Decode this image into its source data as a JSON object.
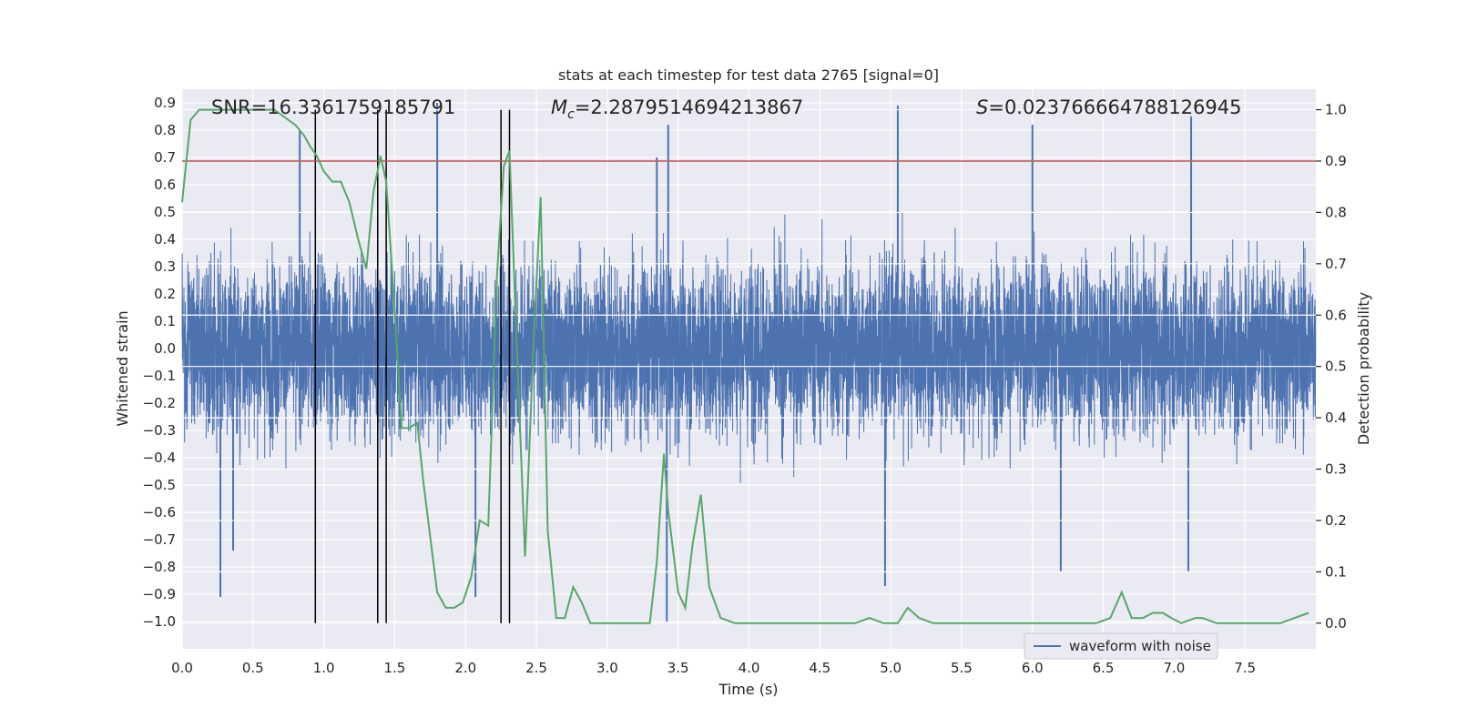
{
  "chart_data": {
    "type": "line",
    "title": "stats at each timestep for test data 2765 [signal=0]",
    "xlabel": "Time (s)",
    "ylabel_left": "Whitened strain",
    "ylabel_right": "Detection probability",
    "xlim": [
      0,
      8
    ],
    "ylim_left": [
      -1.1,
      0.95
    ],
    "ylim_right": [
      -0.05,
      1.04
    ],
    "x_ticks": [
      0.0,
      0.5,
      1.0,
      1.5,
      2.0,
      2.5,
      3.0,
      3.5,
      4.0,
      4.5,
      5.0,
      5.5,
      6.0,
      6.5,
      7.0,
      7.5
    ],
    "x_tick_labels": [
      "0.0",
      "0.5",
      "1.0",
      "1.5",
      "2.0",
      "2.5",
      "3.0",
      "3.5",
      "4.0",
      "4.5",
      "5.0",
      "5.5",
      "6.0",
      "6.5",
      "7.0",
      "7.5"
    ],
    "y_left_ticks": [
      0.9,
      0.8,
      0.7,
      0.6,
      0.5,
      0.4,
      0.3,
      0.2,
      0.1,
      0.0,
      -0.1,
      -0.2,
      -0.3,
      -0.4,
      -0.5,
      -0.6,
      -0.7,
      -0.8,
      -0.9,
      -1.0
    ],
    "y_left_tick_labels": [
      "0.9",
      "0.8",
      "0.7",
      "0.6",
      "0.5",
      "0.4",
      "0.3",
      "0.2",
      "0.1",
      "0.0",
      "−0.1",
      "−0.2",
      "−0.3",
      "−0.4",
      "−0.5",
      "−0.6",
      "−0.7",
      "−0.8",
      "−0.9",
      "−1.0"
    ],
    "y_right_ticks": [
      1.0,
      0.9,
      0.8,
      0.7,
      0.6,
      0.5,
      0.4,
      0.3,
      0.2,
      0.1,
      0.0
    ],
    "y_right_tick_labels": [
      "1.0",
      "0.9",
      "0.8",
      "0.7",
      "0.6",
      "0.5",
      "0.4",
      "0.3",
      "0.2",
      "0.1",
      "0.0"
    ],
    "annotations": {
      "snr": "SNR=16.3361759185791",
      "mc_symbol": "M",
      "mc_sub": "c",
      "mc_value": "=2.2879514694213867",
      "s_symbol": "S",
      "s_value": "=0.023766664788126945"
    },
    "legend": {
      "entries": [
        "waveform with noise"
      ],
      "location": "lower-right"
    },
    "threshold": {
      "value": 0.9,
      "axis": "right",
      "color": "#c44e52"
    },
    "vertical_lines": [
      0.94,
      1.38,
      1.44,
      2.25,
      2.31
    ],
    "waveform": {
      "name": "waveform with noise",
      "color": "#4c72b0",
      "samples": 8192,
      "noise_sigma": 0.22,
      "envelope_max": 0.9,
      "envelope_min": -1.0,
      "spikes": [
        {
          "t": 0.27,
          "v": -0.91
        },
        {
          "t": 0.36,
          "v": -0.74
        },
        {
          "t": 0.83,
          "v": 0.8
        },
        {
          "t": 1.8,
          "v": 0.9
        },
        {
          "t": 2.07,
          "v": -0.91
        },
        {
          "t": 3.42,
          "v": -1.0
        },
        {
          "t": 3.43,
          "v": 0.82
        },
        {
          "t": 5.05,
          "v": 0.89
        },
        {
          "t": 4.96,
          "v": -0.87
        },
        {
          "t": 6.0,
          "v": 0.82
        },
        {
          "t": 6.2,
          "v": -0.82
        },
        {
          "t": 7.12,
          "v": 0.85
        },
        {
          "t": 7.1,
          "v": -0.82
        },
        {
          "t": 3.35,
          "v": 0.7
        }
      ]
    },
    "probability": {
      "name": "detection probability",
      "color": "#55a868",
      "x": [
        0.0,
        0.06,
        0.12,
        0.2,
        0.3,
        0.4,
        0.5,
        0.6,
        0.65,
        0.7,
        0.8,
        0.86,
        0.9,
        0.95,
        1.0,
        1.06,
        1.12,
        1.18,
        1.24,
        1.3,
        1.35,
        1.4,
        1.44,
        1.5,
        1.55,
        1.6,
        1.66,
        1.7,
        1.75,
        1.8,
        1.86,
        1.92,
        1.98,
        2.04,
        2.1,
        2.16,
        2.22,
        2.27,
        2.31,
        2.36,
        2.42,
        2.48,
        2.53,
        2.58,
        2.64,
        2.7,
        2.76,
        2.82,
        2.88,
        2.94,
        3.0,
        3.1,
        3.2,
        3.3,
        3.35,
        3.4,
        3.43,
        3.5,
        3.55,
        3.6,
        3.66,
        3.72,
        3.8,
        3.9,
        4.0,
        4.2,
        4.4,
        4.6,
        4.75,
        4.85,
        4.95,
        5.05,
        5.12,
        5.2,
        5.3,
        5.5,
        5.7,
        6.0,
        6.3,
        6.45,
        6.55,
        6.63,
        6.7,
        6.78,
        6.85,
        6.92,
        6.98,
        7.05,
        7.15,
        7.2,
        7.3,
        7.5,
        7.65,
        7.75,
        7.85,
        7.95
      ],
      "values": [
        0.82,
        0.98,
        1.0,
        1.0,
        1.0,
        1.0,
        1.0,
        1.0,
        1.0,
        0.99,
        0.97,
        0.95,
        0.93,
        0.91,
        0.88,
        0.86,
        0.86,
        0.82,
        0.75,
        0.69,
        0.84,
        0.91,
        0.86,
        0.61,
        0.38,
        0.38,
        0.39,
        0.28,
        0.17,
        0.06,
        0.03,
        0.03,
        0.04,
        0.09,
        0.2,
        0.19,
        0.67,
        0.89,
        0.92,
        0.55,
        0.13,
        0.55,
        0.83,
        0.18,
        0.01,
        0.01,
        0.07,
        0.04,
        0.0,
        0.0,
        0.0,
        0.0,
        0.0,
        0.0,
        0.12,
        0.33,
        0.22,
        0.06,
        0.03,
        0.15,
        0.25,
        0.07,
        0.01,
        0.0,
        0.0,
        0.0,
        0.0,
        0.0,
        0.0,
        0.01,
        0.0,
        0.0,
        0.03,
        0.01,
        0.0,
        0.0,
        0.0,
        0.0,
        0.0,
        0.0,
        0.01,
        0.06,
        0.01,
        0.01,
        0.02,
        0.02,
        0.01,
        0.0,
        0.01,
        0.01,
        0.0,
        0.0,
        0.0,
        0.0,
        0.01,
        0.02
      ]
    }
  }
}
